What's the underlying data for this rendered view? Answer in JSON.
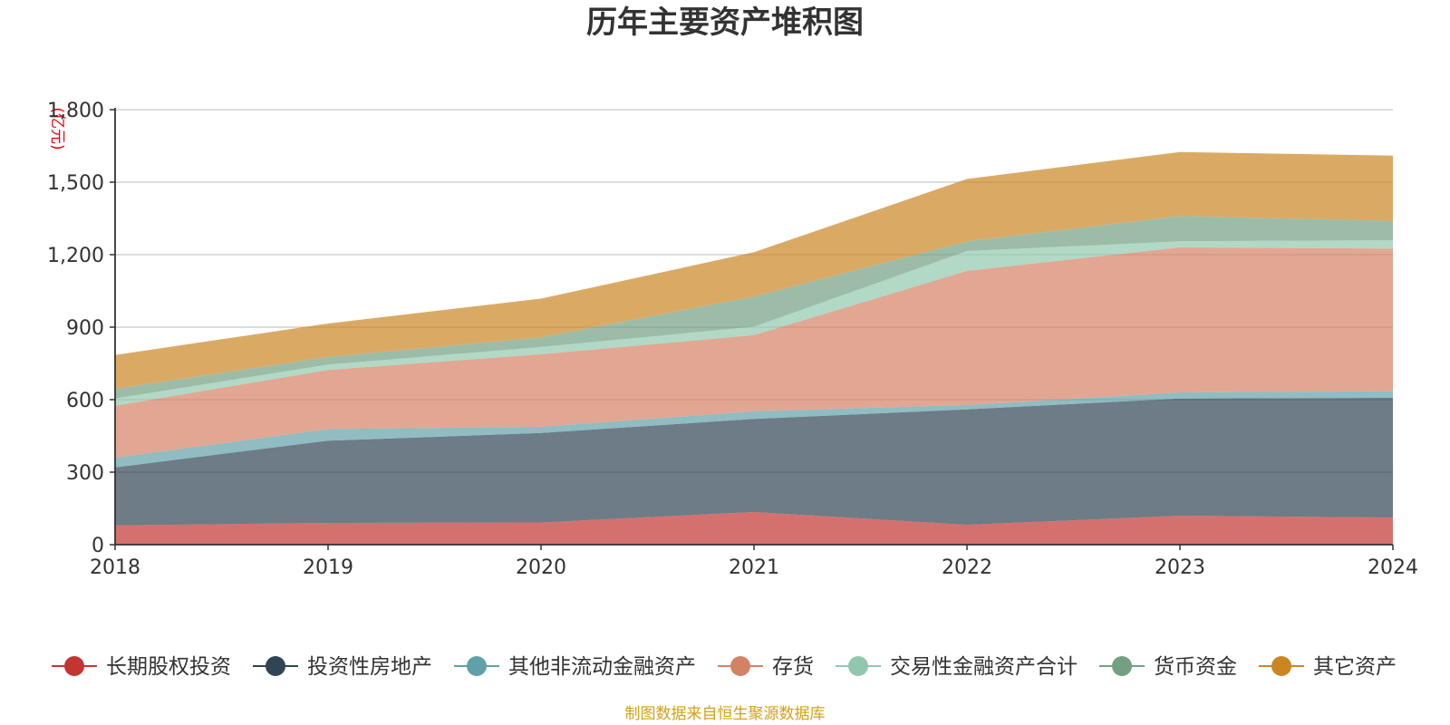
{
  "chart_data": {
    "type": "area",
    "stacked": true,
    "title": "历年主要资产堆积图",
    "ylabel": "(亿元)",
    "xlabel": "",
    "x": [
      "2018",
      "2019",
      "2020",
      "2021",
      "2022",
      "2023",
      "2024"
    ],
    "ylim": [
      0,
      1800
    ],
    "yticks": [
      0,
      300,
      600,
      900,
      1200,
      1500,
      1800
    ],
    "ytick_labels": [
      "0",
      "300",
      "600",
      "900",
      "1,200",
      "1,500",
      "1,800"
    ],
    "grid": true,
    "legend_position": "bottom",
    "series": [
      {
        "name": "长期股权投资",
        "color": "#c23531",
        "values": [
          80,
          90,
          92,
          135,
          82,
          120,
          112
        ]
      },
      {
        "name": "投资性房地产",
        "color": "#2f4554",
        "values": [
          240,
          340,
          370,
          385,
          478,
          485,
          496
        ]
      },
      {
        "name": "其他非流动金融资产",
        "color": "#61a0a8",
        "values": [
          40,
          48,
          26,
          32,
          18,
          25,
          27
        ]
      },
      {
        "name": "存货",
        "color": "#d48265",
        "values": [
          215,
          245,
          300,
          315,
          555,
          600,
          590
        ]
      },
      {
        "name": "交易性金融资产合计",
        "color": "#91c7ae",
        "values": [
          30,
          22,
          30,
          35,
          82,
          25,
          35
        ]
      },
      {
        "name": "货币资金",
        "color": "#749f83",
        "values": [
          40,
          32,
          40,
          125,
          40,
          105,
          80
        ]
      },
      {
        "name": "其它资产",
        "color": "#ca8622",
        "values": [
          140,
          138,
          160,
          183,
          258,
          265,
          270
        ]
      }
    ]
  },
  "footer": {
    "source": "制图数据来自恒生聚源数据库"
  }
}
